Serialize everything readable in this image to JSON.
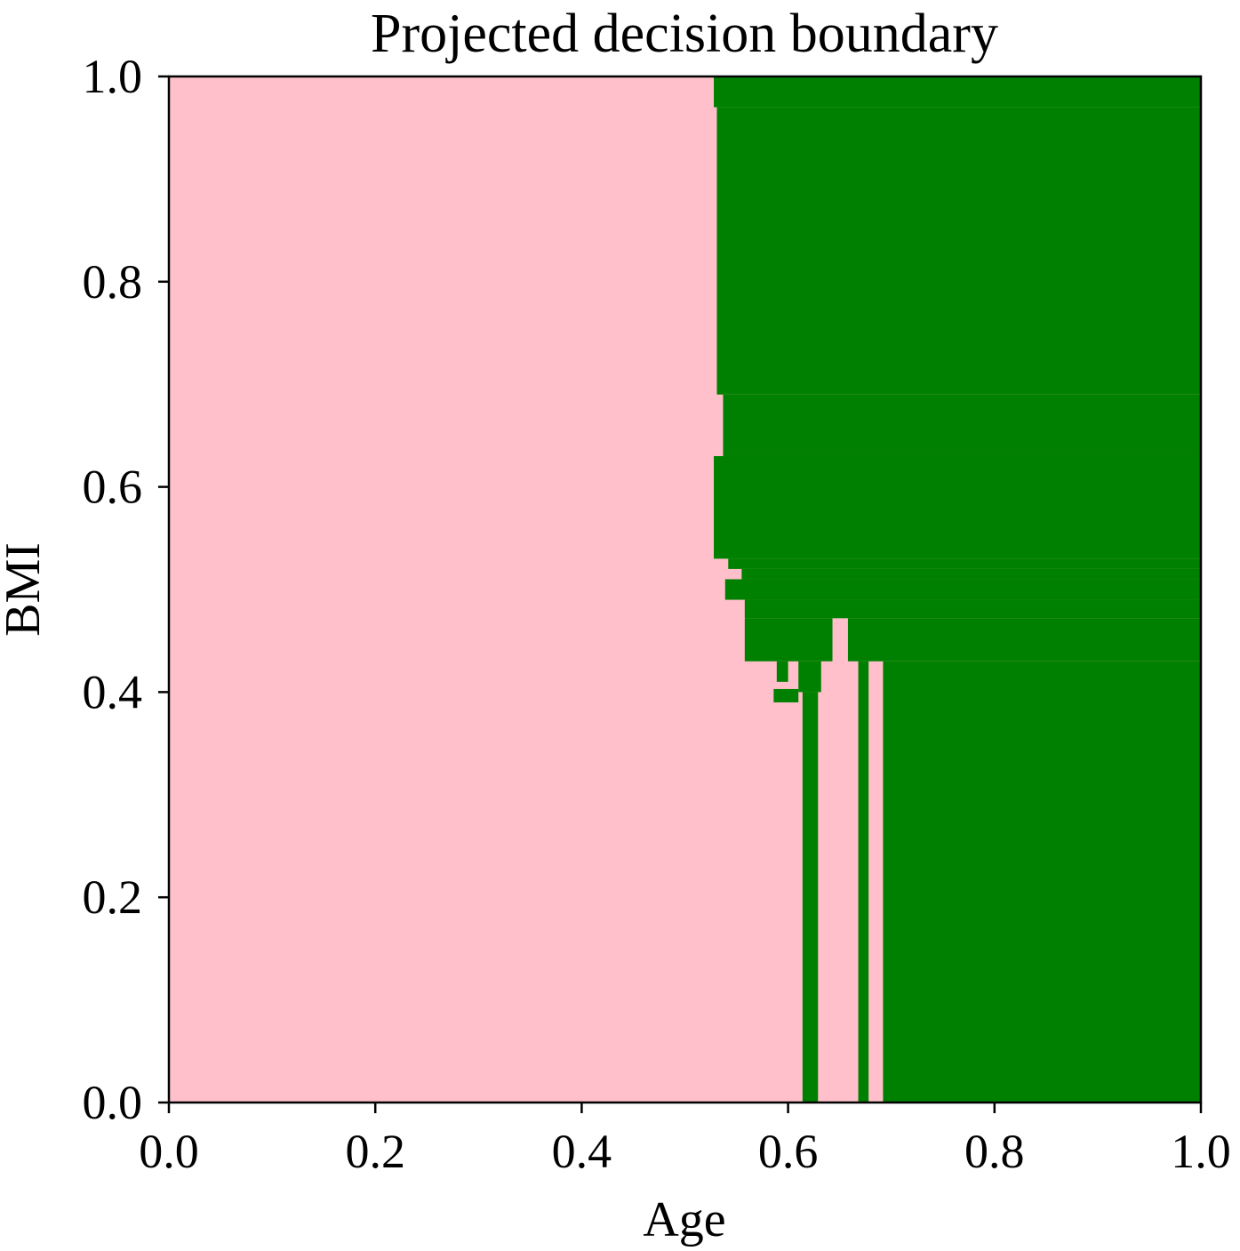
{
  "chart_data": {
    "type": "heatmap",
    "title": "Projected decision boundary",
    "xlabel": "Age",
    "ylabel": "BMI",
    "xlim": [
      0.0,
      1.0
    ],
    "ylim": [
      0.0,
      1.0
    ],
    "grid": false,
    "x_ticks": [
      "0.0",
      "0.2",
      "0.4",
      "0.6",
      "0.8",
      "1.0"
    ],
    "y_ticks": [
      "0.0",
      "0.2",
      "0.4",
      "0.6",
      "0.8",
      "1.0"
    ],
    "classes": [
      {
        "color": "#ffc0cb"
      },
      {
        "color": "#008000"
      }
    ],
    "background_class": 0,
    "regions_class1": [
      {
        "x0": 0.528,
        "x1": 1.0,
        "y0": 0.97,
        "y1": 1.0
      },
      {
        "x0": 0.531,
        "x1": 1.0,
        "y0": 0.69,
        "y1": 0.97
      },
      {
        "x0": 0.537,
        "x1": 1.0,
        "y0": 0.63,
        "y1": 0.69
      },
      {
        "x0": 0.528,
        "x1": 1.0,
        "y0": 0.53,
        "y1": 0.63
      },
      {
        "x0": 0.542,
        "x1": 1.0,
        "y0": 0.52,
        "y1": 0.53
      },
      {
        "x0": 0.555,
        "x1": 1.0,
        "y0": 0.51,
        "y1": 0.52
      },
      {
        "x0": 0.539,
        "x1": 1.0,
        "y0": 0.49,
        "y1": 0.51
      },
      {
        "x0": 0.558,
        "x1": 1.0,
        "y0": 0.472,
        "y1": 0.49
      },
      {
        "x0": 0.558,
        "x1": 0.643,
        "y0": 0.43,
        "y1": 0.472
      },
      {
        "x0": 0.658,
        "x1": 1.0,
        "y0": 0.43,
        "y1": 0.472
      },
      {
        "x0": 0.589,
        "x1": 0.6,
        "y0": 0.41,
        "y1": 0.43
      },
      {
        "x0": 0.61,
        "x1": 0.632,
        "y0": 0.4,
        "y1": 0.43
      },
      {
        "x0": 0.586,
        "x1": 0.61,
        "y0": 0.39,
        "y1": 0.403
      },
      {
        "x0": 0.614,
        "x1": 0.629,
        "y0": 0.0,
        "y1": 0.4
      },
      {
        "x0": 0.668,
        "x1": 0.678,
        "y0": 0.0,
        "y1": 0.43
      },
      {
        "x0": 0.692,
        "x1": 1.0,
        "y0": 0.0,
        "y1": 0.43
      }
    ]
  }
}
